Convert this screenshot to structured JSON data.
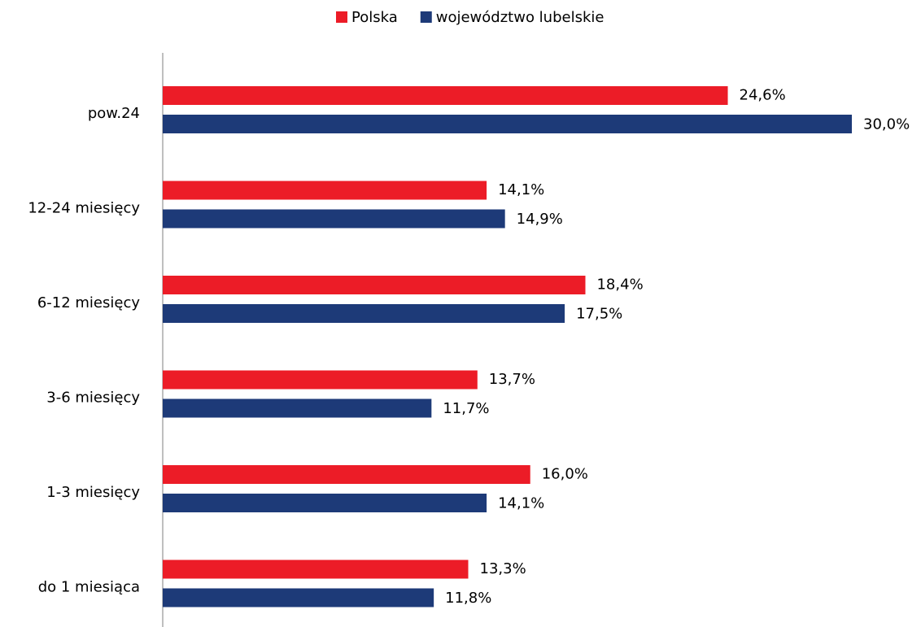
{
  "chart_data": {
    "type": "hbar",
    "categories": [
      "pow.24",
      "12-24 miesięcy",
      "6-12 miesięcy",
      "3-6 miesięcy",
      "1-3 miesięcy",
      "do 1 miesiąca"
    ],
    "series": [
      {
        "name": "Polska",
        "color": "#ec1c27",
        "values": [
          24.6,
          14.1,
          18.4,
          13.7,
          16.0,
          13.3
        ],
        "value_labels": [
          "24,6%",
          "14,1%",
          "18,4%",
          "13,7%",
          "16,0%",
          "13,3%"
        ]
      },
      {
        "name": "województwo lubelskie",
        "color": "#1d3a78",
        "values": [
          30.0,
          14.9,
          17.5,
          11.7,
          14.1,
          11.8
        ],
        "value_labels": [
          "30,0%",
          "14,9%",
          "17,5%",
          "11,7%",
          "14,1%",
          "11,8%"
        ]
      }
    ],
    "legend": "top"
  }
}
